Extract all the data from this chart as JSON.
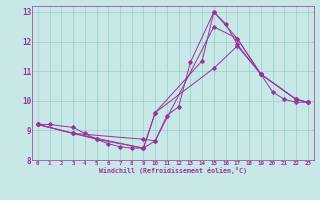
{
  "xlabel": "Windchill (Refroidissement éolien,°C)",
  "ylabel": "",
  "xlim": [
    -0.5,
    23.5
  ],
  "ylim": [
    8,
    13.2
  ],
  "yticks": [
    8,
    9,
    10,
    11,
    12,
    13
  ],
  "xticks": [
    0,
    1,
    2,
    3,
    4,
    5,
    6,
    7,
    8,
    9,
    10,
    11,
    12,
    13,
    14,
    15,
    16,
    17,
    18,
    19,
    20,
    21,
    22,
    23
  ],
  "bg_color": "#c8e8e8",
  "line_color": "#993399",
  "grid_color": "#99cccc",
  "lines": [
    {
      "x": [
        0,
        1,
        3,
        4,
        5,
        6,
        7,
        8,
        9,
        10,
        11,
        12,
        13,
        15,
        16,
        17,
        19,
        20,
        21,
        22,
        23
      ],
      "y": [
        9.2,
        9.2,
        9.1,
        8.9,
        8.7,
        8.55,
        8.45,
        8.4,
        8.4,
        8.65,
        9.5,
        9.8,
        11.3,
        13.0,
        12.6,
        11.9,
        10.9,
        10.3,
        10.05,
        9.95,
        9.95
      ]
    },
    {
      "x": [
        0,
        3,
        9,
        10,
        15,
        17,
        19,
        22,
        23
      ],
      "y": [
        9.2,
        8.9,
        8.7,
        8.65,
        12.5,
        12.1,
        10.9,
        10.05,
        9.95
      ]
    },
    {
      "x": [
        0,
        3,
        9,
        10,
        15,
        17,
        19,
        22,
        23
      ],
      "y": [
        9.2,
        8.9,
        8.4,
        9.6,
        11.1,
        11.85,
        10.9,
        10.05,
        9.95
      ]
    },
    {
      "x": [
        0,
        3,
        5,
        9,
        10,
        14,
        15,
        17,
        19,
        22,
        23
      ],
      "y": [
        9.2,
        8.9,
        8.7,
        8.4,
        9.6,
        11.35,
        13.0,
        12.1,
        10.9,
        10.05,
        9.95
      ]
    }
  ],
  "figsize": [
    3.2,
    2.0
  ],
  "dpi": 100
}
